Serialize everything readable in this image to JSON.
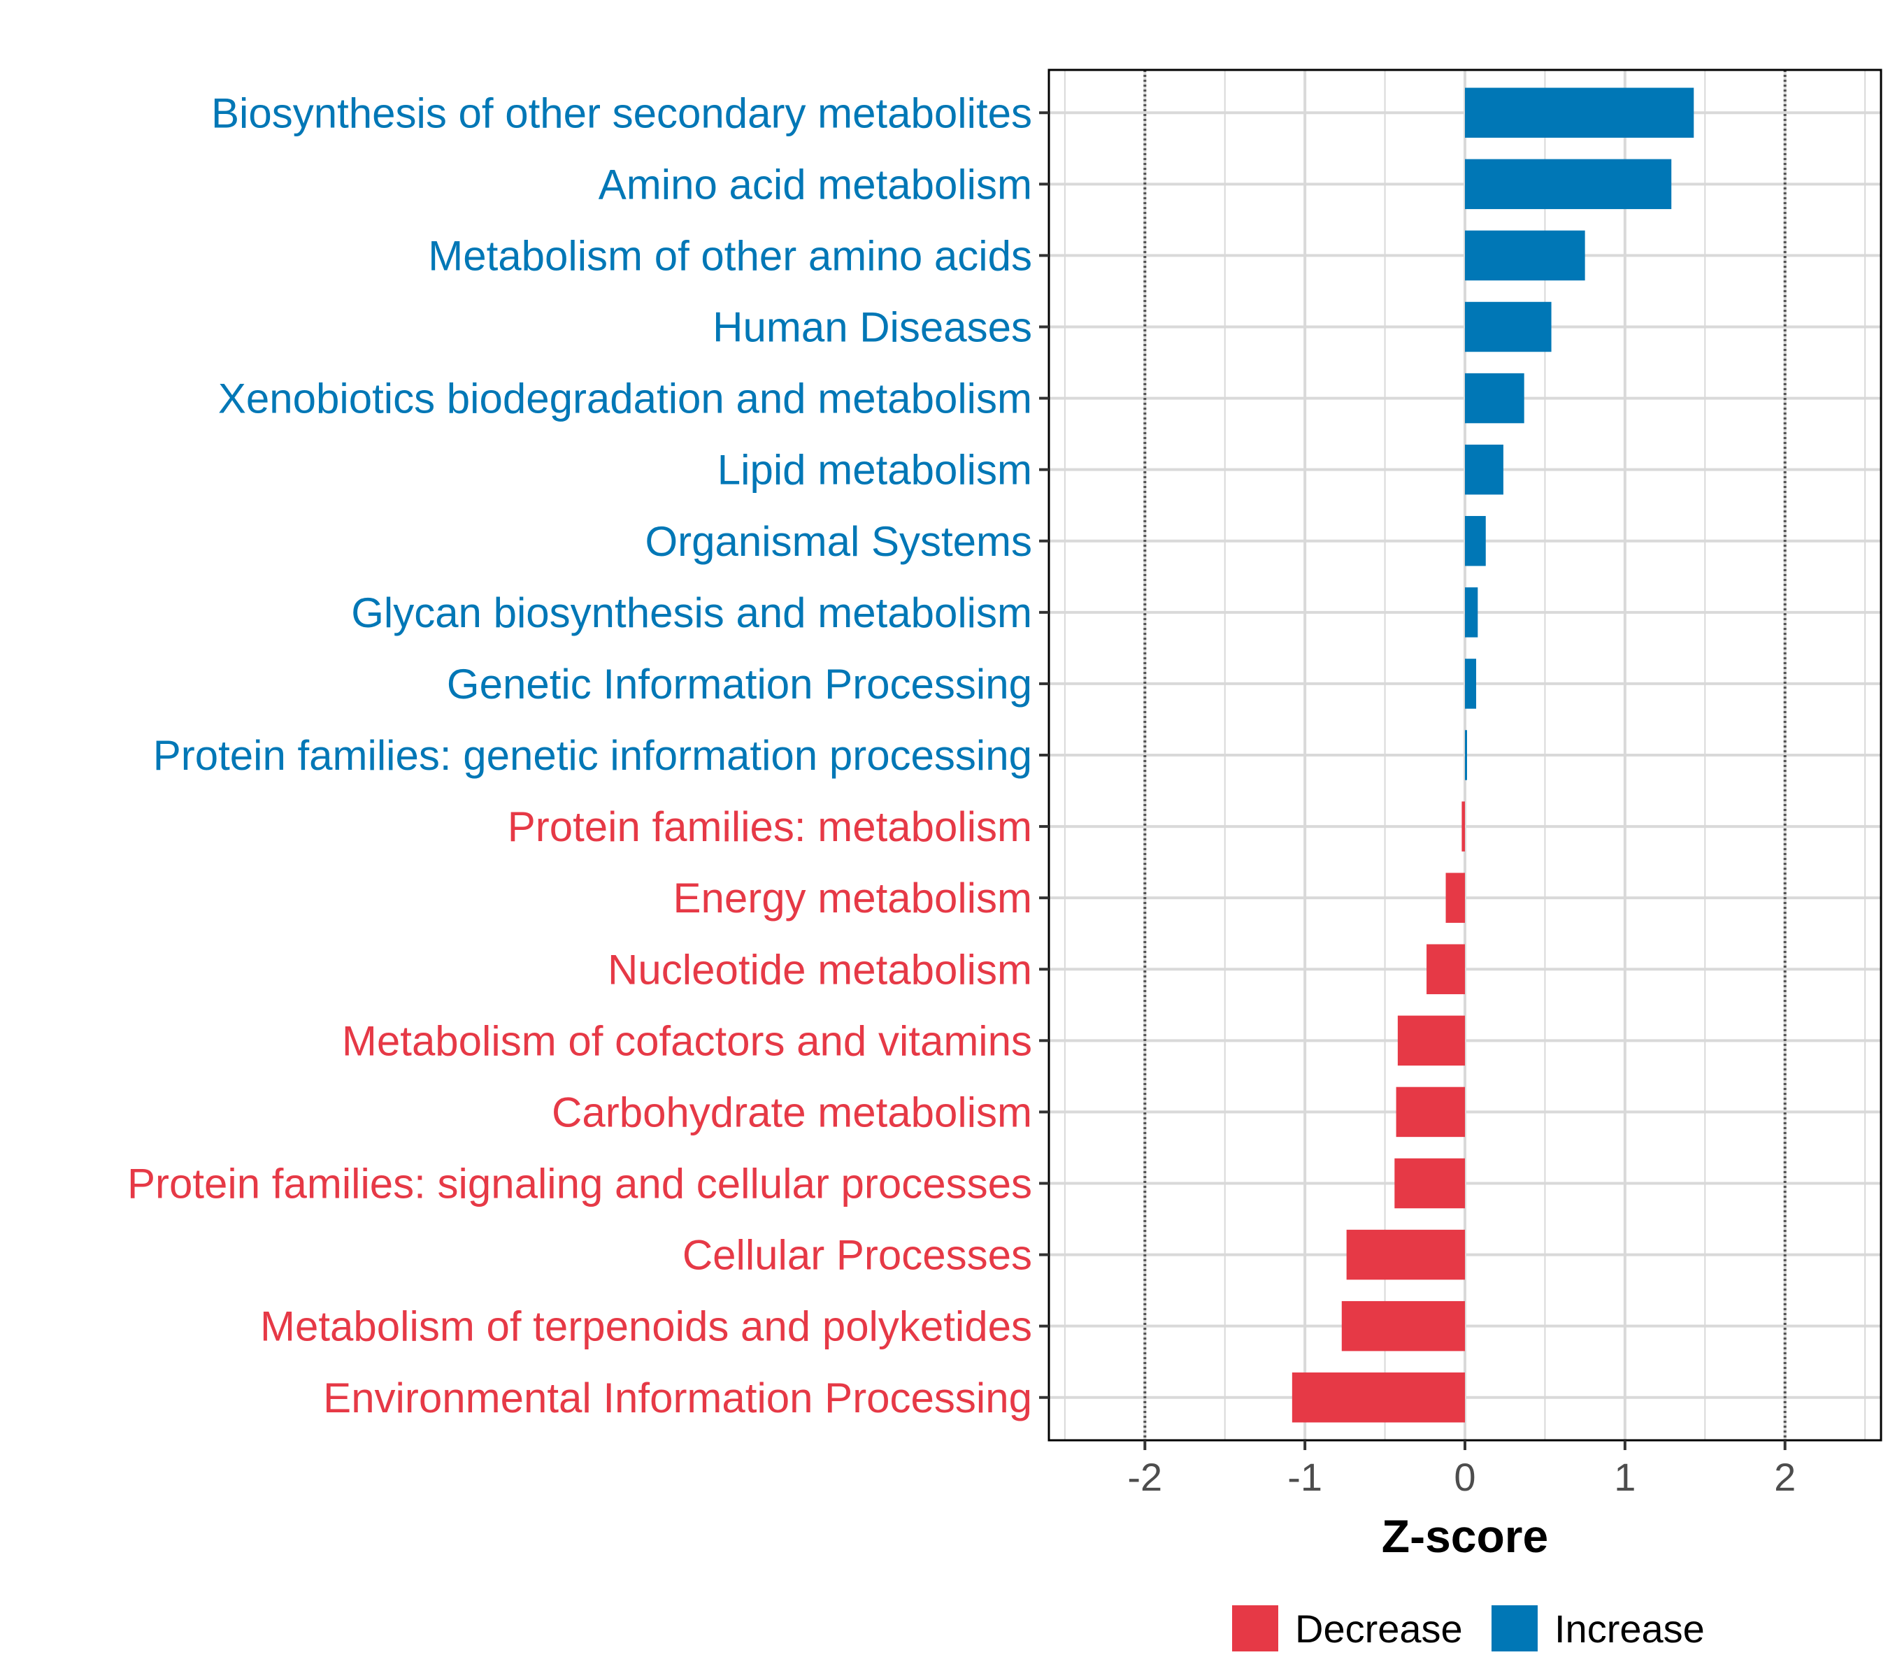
{
  "chart_data": {
    "type": "bar",
    "orientation": "horizontal",
    "xlabel": "Z-score",
    "ylabel": "",
    "xlim": [
      -2.6,
      2.6
    ],
    "xticks": [
      -2,
      -1,
      0,
      1,
      2
    ],
    "xtick_labels": [
      "-2",
      "-1",
      "0",
      "1",
      "2"
    ],
    "reference_lines": [
      -2,
      2
    ],
    "grid": true,
    "categories": [
      "Biosynthesis of other secondary metabolites",
      "Amino acid metabolism",
      "Metabolism of other amino acids",
      "Human Diseases",
      "Xenobiotics biodegradation and metabolism",
      "Lipid metabolism",
      "Organismal Systems",
      "Glycan biosynthesis and metabolism",
      "Genetic Information Processing",
      "Protein families: genetic information processing",
      "Protein families: metabolism",
      "Energy metabolism",
      "Nucleotide metabolism",
      "Metabolism of cofactors and vitamins",
      "Carbohydrate metabolism",
      "Protein families: signaling and cellular processes",
      "Cellular Processes",
      "Metabolism of terpenoids and polyketides",
      "Environmental Information Processing"
    ],
    "values": [
      1.43,
      1.29,
      0.75,
      0.54,
      0.37,
      0.24,
      0.13,
      0.08,
      0.07,
      0.01,
      -0.02,
      -0.12,
      -0.24,
      -0.42,
      -0.43,
      -0.44,
      -0.74,
      -0.77,
      -1.08
    ],
    "legend": {
      "position": "bottom",
      "entries": [
        {
          "label": "Decrease",
          "color": "#E63946"
        },
        {
          "label": "Increase",
          "color": "#0077B6"
        }
      ]
    },
    "colors": {
      "increase": "#0077B6",
      "decrease": "#E63946",
      "grid": "#d9d9d9",
      "reference": "#555555",
      "axis": "#000000"
    }
  }
}
